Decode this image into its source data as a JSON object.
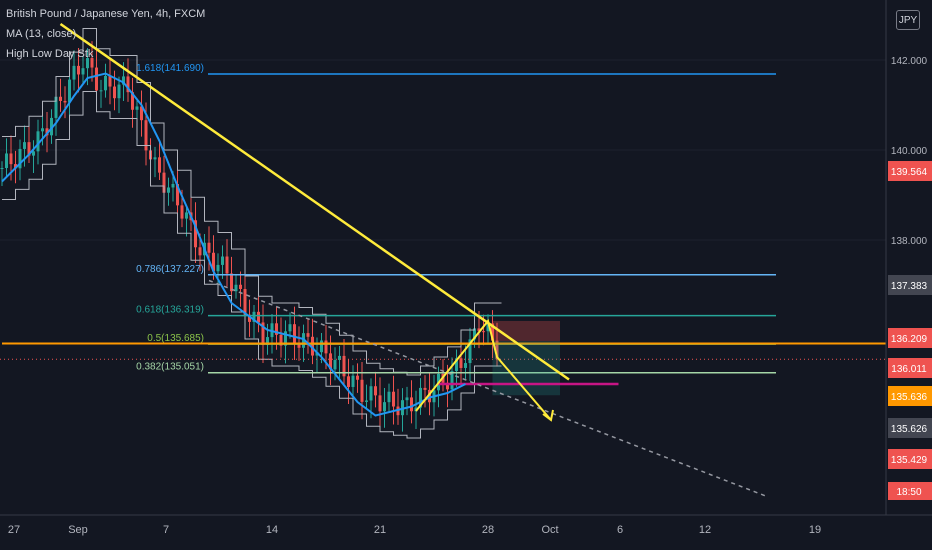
{
  "legend": {
    "symbol": "British Pound / Japanese Yen, 4h, FXCM",
    "ma": "MA (13, close)",
    "indicator": "High Low Day Stk"
  },
  "currency": "JPY",
  "colors": {
    "background": "#131722",
    "bull": "#26a69a",
    "bear": "#ef5350",
    "ma": "#2196f3",
    "trendline": "#ffeb3b",
    "axis_text": "#b2b5be"
  },
  "chart_data": {
    "type": "candlestick",
    "title": "British Pound / Japanese Yen, 4h, FXCM",
    "y_axis": {
      "ticks": [
        142.0,
        140.0,
        138.0
      ],
      "tick_labels": [
        "142.000",
        "140.000",
        "138.000"
      ],
      "range": [
        134.0,
        142.9
      ]
    },
    "x_axis": {
      "tick_labels": [
        "27",
        "Sep",
        "7",
        "14",
        "21",
        "28",
        "Oct",
        "6",
        "12",
        "19"
      ]
    },
    "price_labels": [
      {
        "value": "139.564",
        "color": "#ef5350"
      },
      {
        "value": "137.383",
        "color": "#434651"
      },
      {
        "value": "136.209",
        "color": "#ef5350"
      },
      {
        "value": "136.011",
        "color": "#ef5350"
      },
      {
        "value": "135.636",
        "color": "#ff9800"
      },
      {
        "value": "135.626",
        "color": "#434651"
      },
      {
        "value": "135.429",
        "color": "#ef5350"
      }
    ],
    "time_label": "18:50",
    "fib_levels": [
      {
        "label": "1.618(141.690)",
        "price": 141.69,
        "color": "#2196f3"
      },
      {
        "label": "0.786(137.227)",
        "price": 137.227,
        "color": "#64b5f6"
      },
      {
        "label": "0.618(136.319)",
        "price": 136.319,
        "color": "#26a69a"
      },
      {
        "label": "0.5(135.685)",
        "price": 135.685,
        "color": "#8bc34a"
      },
      {
        "label": "0.382(135.051)",
        "price": 135.051,
        "color": "#a5d6a7"
      }
    ],
    "ma_series": [
      [
        0,
        139.3
      ],
      [
        6,
        139.9
      ],
      [
        12,
        140.6
      ],
      [
        16,
        141.2
      ],
      [
        19,
        141.6
      ],
      [
        23,
        141.7
      ],
      [
        27,
        141.5
      ],
      [
        31,
        141.0
      ],
      [
        35,
        140.2
      ],
      [
        39,
        139.2
      ],
      [
        43,
        138.3
      ],
      [
        47,
        137.3
      ],
      [
        51,
        136.6
      ],
      [
        55,
        136.3
      ],
      [
        59,
        136.0
      ],
      [
        63,
        135.9
      ],
      [
        67,
        135.8
      ],
      [
        71,
        135.4
      ],
      [
        75,
        134.9
      ],
      [
        79,
        134.4
      ],
      [
        83,
        134.1
      ],
      [
        87,
        134.2
      ],
      [
        91,
        134.3
      ],
      [
        95,
        134.5
      ],
      [
        99,
        134.6
      ],
      [
        103,
        134.8
      ]
    ],
    "trendline": {
      "from": [
        13,
        142.8
      ],
      "to": [
        126,
        134.9
      ]
    },
    "dashed_trendline": {
      "from": [
        46,
        137.1
      ],
      "to": [
        170,
        132.3
      ]
    },
    "range_box": {
      "x0": 109,
      "x1": 124,
      "top": 136.2,
      "mid": 135.75,
      "bottom": 134.55
    },
    "pink_level": {
      "x0": 97,
      "x1": 137,
      "price": 134.8
    },
    "orange_level": {
      "x0": 0,
      "x1": 190,
      "price": 135.7
    }
  }
}
